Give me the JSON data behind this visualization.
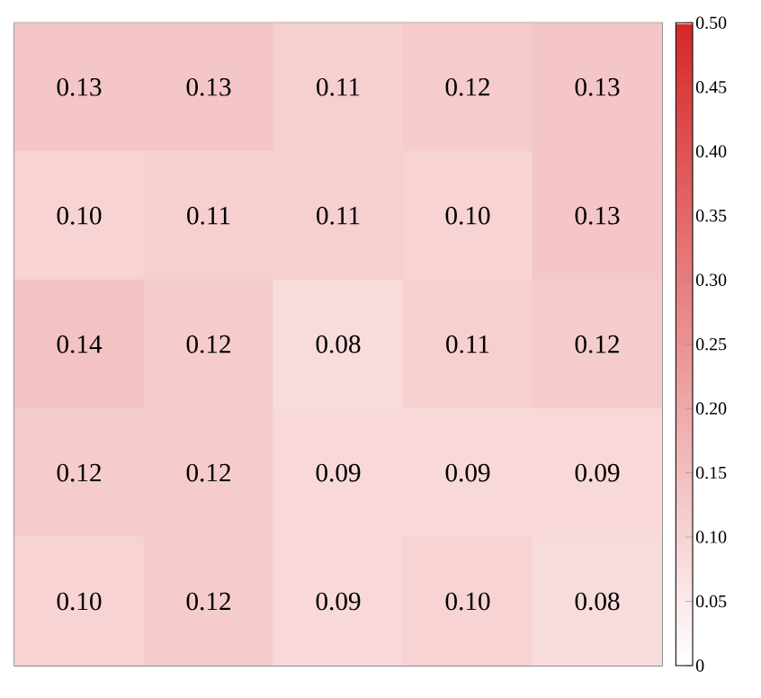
{
  "chart_data": {
    "type": "heatmap",
    "categories": [
      null,
      null,
      null,
      null,
      null
    ],
    "y_categories": [
      null,
      null,
      null,
      null,
      null
    ],
    "cells": [
      [
        0.13,
        0.13,
        0.11,
        0.12,
        0.13
      ],
      [
        0.1,
        0.11,
        0.11,
        0.1,
        0.13
      ],
      [
        0.14,
        0.12,
        0.08,
        0.11,
        0.12
      ],
      [
        0.12,
        0.12,
        0.09,
        0.09,
        0.09
      ],
      [
        0.1,
        0.12,
        0.09,
        0.1,
        0.08
      ]
    ],
    "cell_labels": [
      [
        "0.13",
        "0.13",
        "0.11",
        "0.12",
        "0.13"
      ],
      [
        "0.10",
        "0.11",
        "0.11",
        "0.10",
        "0.13"
      ],
      [
        "0.14",
        "0.12",
        "0.08",
        "0.11",
        "0.12"
      ],
      [
        "0.12",
        "0.12",
        "0.09",
        "0.09",
        "0.09"
      ],
      [
        "0.10",
        "0.12",
        "0.09",
        "0.10",
        "0.08"
      ]
    ],
    "clim": [
      0,
      0.5
    ],
    "cticks": [
      0,
      0.05,
      {
        "value": 0.1,
        "label": "0.10"
      },
      0.15,
      {
        "value": 0.2,
        "label": "0.20"
      },
      0.25,
      {
        "value": 0.3,
        "label": "0.30"
      },
      0.35,
      {
        "value": 0.4,
        "label": "0.40"
      },
      0.45,
      {
        "value": 0.5,
        "label": "0.50"
      }
    ]
  }
}
